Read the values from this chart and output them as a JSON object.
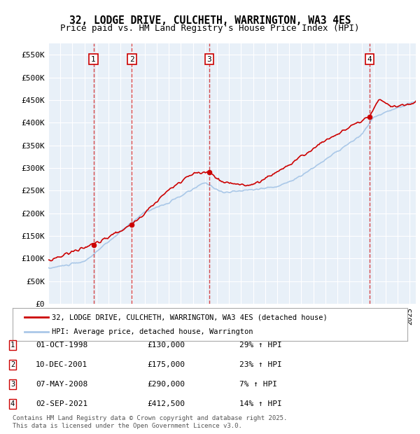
{
  "title": "32, LODGE DRIVE, CULCHETH, WARRINGTON, WA3 4ES",
  "subtitle": "Price paid vs. HM Land Registry's House Price Index (HPI)",
  "footer": "Contains HM Land Registry data © Crown copyright and database right 2025.\nThis data is licensed under the Open Government Licence v3.0.",
  "ylim": [
    0,
    575000
  ],
  "yticks": [
    0,
    50000,
    100000,
    150000,
    200000,
    250000,
    300000,
    350000,
    400000,
    450000,
    500000,
    550000
  ],
  "ytick_labels": [
    "£0",
    "£50K",
    "£100K",
    "£150K",
    "£200K",
    "£250K",
    "£300K",
    "£350K",
    "£400K",
    "£450K",
    "£500K",
    "£550K"
  ],
  "background_color": "#e8f0f8",
  "plot_bg": "#e8f0f8",
  "grid_color": "#ffffff",
  "sale_color": "#cc0000",
  "hpi_color": "#aac8e8",
  "transactions": [
    {
      "num": 1,
      "date": "01-OCT-1998",
      "price": 130000,
      "pct": "29%",
      "dir": "↑",
      "x": 1998.75
    },
    {
      "num": 2,
      "date": "10-DEC-2001",
      "price": 175000,
      "pct": "23%",
      "dir": "↑",
      "x": 2001.94
    },
    {
      "num": 3,
      "date": "07-MAY-2008",
      "price": 290000,
      "pct": "7%",
      "dir": "↑",
      "x": 2008.35
    },
    {
      "num": 4,
      "date": "02-SEP-2021",
      "price": 412500,
      "pct": "14%",
      "dir": "↑",
      "x": 2021.67
    }
  ],
  "legend_entries": [
    "32, LODGE DRIVE, CULCHETH, WARRINGTON, WA3 4ES (detached house)",
    "HPI: Average price, detached house, Warrington"
  ],
  "xmin": 1995.0,
  "xmax": 2025.5
}
